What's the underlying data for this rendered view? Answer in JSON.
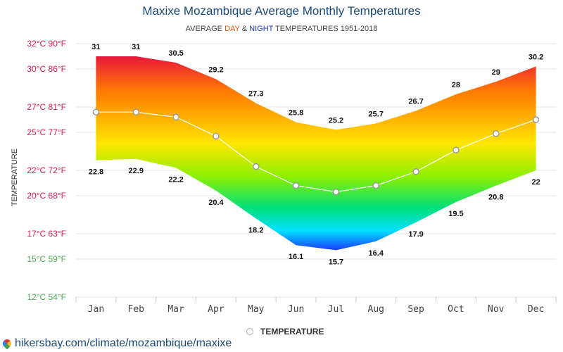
{
  "header": {
    "title": "Maxixe Mozambique Average Monthly Temperatures",
    "subtitle_pre": "AVERAGE",
    "subtitle_day": "DAY",
    "subtitle_amp": "&",
    "subtitle_night": "NIGHT",
    "subtitle_post": "TEMPERATURES 1951-2018"
  },
  "legend": {
    "label": "TEMPERATURE"
  },
  "footer": {
    "source": "hikersbay.com/climate/mozambique/maxixe"
  },
  "colors": {
    "title": "#1a4a7a",
    "day": "#e8590c",
    "night": "#1c39c9",
    "axis_hot": "#e6194b",
    "axis_cool": "#4caf50"
  },
  "chart_data": {
    "type": "area",
    "categories": [
      "Jan",
      "Feb",
      "Mar",
      "Apr",
      "May",
      "Jun",
      "Jul",
      "Aug",
      "Sep",
      "Oct",
      "Nov",
      "Dec"
    ],
    "series": [
      {
        "values": [
          31,
          31,
          30.5,
          29.2,
          27.3,
          25.8,
          25.2,
          25.7,
          26.7,
          28,
          29,
          30.2
        ]
      },
      {
        "values": [
          22.8,
          22.9,
          22.2,
          20.4,
          18.2,
          16.1,
          15.7,
          16.4,
          17.9,
          19.5,
          20.8,
          22
        ]
      },
      {
        "name": "TEMPERATURE",
        "values": [
          26.6,
          26.6,
          26.2,
          24.7,
          22.3,
          20.8,
          20.3,
          20.8,
          21.9,
          23.6,
          24.9,
          26.0
        ]
      }
    ],
    "ylabel": "TEMPERATURE",
    "ylim": [
      12,
      32
    ],
    "yticks": [
      {
        "value": 32,
        "label": "32°C 90°F"
      },
      {
        "value": 30,
        "label": "30°C 86°F"
      },
      {
        "value": 27,
        "label": "27°C 81°F"
      },
      {
        "value": 25,
        "label": "25°C 77°F"
      },
      {
        "value": 22,
        "label": "22°C 72°F"
      },
      {
        "value": 20,
        "label": "20°C 68°F"
      },
      {
        "value": 17,
        "label": "17°C 63°F"
      },
      {
        "value": 15,
        "label": "15°C 59°F"
      },
      {
        "value": 12,
        "label": "12°C 54°F"
      }
    ],
    "grid": true,
    "legend_position": "bottom"
  }
}
